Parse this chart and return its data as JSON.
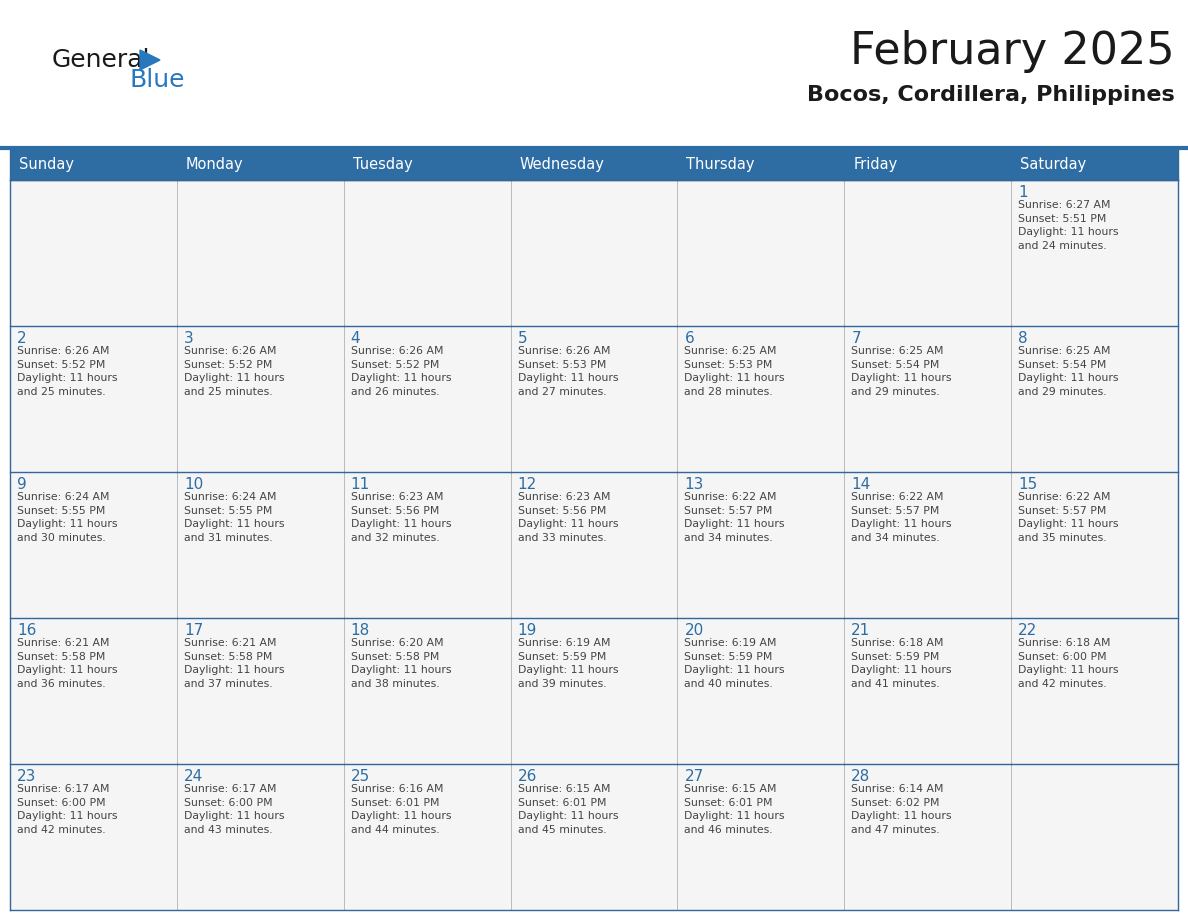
{
  "title": "February 2025",
  "subtitle": "Bocos, Cordillera, Philippines",
  "header_bg_color": "#2E6DA4",
  "header_text_color": "#FFFFFF",
  "cell_bg_color": "#F5F5F5",
  "day_number_color": "#2E6DA4",
  "text_color": "#444444",
  "border_color": "#336699",
  "sep_line_color": "#2E6DA4",
  "days_of_week": [
    "Sunday",
    "Monday",
    "Tuesday",
    "Wednesday",
    "Thursday",
    "Friday",
    "Saturday"
  ],
  "weeks": [
    [
      {
        "day": null,
        "info": null
      },
      {
        "day": null,
        "info": null
      },
      {
        "day": null,
        "info": null
      },
      {
        "day": null,
        "info": null
      },
      {
        "day": null,
        "info": null
      },
      {
        "day": null,
        "info": null
      },
      {
        "day": 1,
        "info": "Sunrise: 6:27 AM\nSunset: 5:51 PM\nDaylight: 11 hours\nand 24 minutes."
      }
    ],
    [
      {
        "day": 2,
        "info": "Sunrise: 6:26 AM\nSunset: 5:52 PM\nDaylight: 11 hours\nand 25 minutes."
      },
      {
        "day": 3,
        "info": "Sunrise: 6:26 AM\nSunset: 5:52 PM\nDaylight: 11 hours\nand 25 minutes."
      },
      {
        "day": 4,
        "info": "Sunrise: 6:26 AM\nSunset: 5:52 PM\nDaylight: 11 hours\nand 26 minutes."
      },
      {
        "day": 5,
        "info": "Sunrise: 6:26 AM\nSunset: 5:53 PM\nDaylight: 11 hours\nand 27 minutes."
      },
      {
        "day": 6,
        "info": "Sunrise: 6:25 AM\nSunset: 5:53 PM\nDaylight: 11 hours\nand 28 minutes."
      },
      {
        "day": 7,
        "info": "Sunrise: 6:25 AM\nSunset: 5:54 PM\nDaylight: 11 hours\nand 29 minutes."
      },
      {
        "day": 8,
        "info": "Sunrise: 6:25 AM\nSunset: 5:54 PM\nDaylight: 11 hours\nand 29 minutes."
      }
    ],
    [
      {
        "day": 9,
        "info": "Sunrise: 6:24 AM\nSunset: 5:55 PM\nDaylight: 11 hours\nand 30 minutes."
      },
      {
        "day": 10,
        "info": "Sunrise: 6:24 AM\nSunset: 5:55 PM\nDaylight: 11 hours\nand 31 minutes."
      },
      {
        "day": 11,
        "info": "Sunrise: 6:23 AM\nSunset: 5:56 PM\nDaylight: 11 hours\nand 32 minutes."
      },
      {
        "day": 12,
        "info": "Sunrise: 6:23 AM\nSunset: 5:56 PM\nDaylight: 11 hours\nand 33 minutes."
      },
      {
        "day": 13,
        "info": "Sunrise: 6:22 AM\nSunset: 5:57 PM\nDaylight: 11 hours\nand 34 minutes."
      },
      {
        "day": 14,
        "info": "Sunrise: 6:22 AM\nSunset: 5:57 PM\nDaylight: 11 hours\nand 34 minutes."
      },
      {
        "day": 15,
        "info": "Sunrise: 6:22 AM\nSunset: 5:57 PM\nDaylight: 11 hours\nand 35 minutes."
      }
    ],
    [
      {
        "day": 16,
        "info": "Sunrise: 6:21 AM\nSunset: 5:58 PM\nDaylight: 11 hours\nand 36 minutes."
      },
      {
        "day": 17,
        "info": "Sunrise: 6:21 AM\nSunset: 5:58 PM\nDaylight: 11 hours\nand 37 minutes."
      },
      {
        "day": 18,
        "info": "Sunrise: 6:20 AM\nSunset: 5:58 PM\nDaylight: 11 hours\nand 38 minutes."
      },
      {
        "day": 19,
        "info": "Sunrise: 6:19 AM\nSunset: 5:59 PM\nDaylight: 11 hours\nand 39 minutes."
      },
      {
        "day": 20,
        "info": "Sunrise: 6:19 AM\nSunset: 5:59 PM\nDaylight: 11 hours\nand 40 minutes."
      },
      {
        "day": 21,
        "info": "Sunrise: 6:18 AM\nSunset: 5:59 PM\nDaylight: 11 hours\nand 41 minutes."
      },
      {
        "day": 22,
        "info": "Sunrise: 6:18 AM\nSunset: 6:00 PM\nDaylight: 11 hours\nand 42 minutes."
      }
    ],
    [
      {
        "day": 23,
        "info": "Sunrise: 6:17 AM\nSunset: 6:00 PM\nDaylight: 11 hours\nand 42 minutes."
      },
      {
        "day": 24,
        "info": "Sunrise: 6:17 AM\nSunset: 6:00 PM\nDaylight: 11 hours\nand 43 minutes."
      },
      {
        "day": 25,
        "info": "Sunrise: 6:16 AM\nSunset: 6:01 PM\nDaylight: 11 hours\nand 44 minutes."
      },
      {
        "day": 26,
        "info": "Sunrise: 6:15 AM\nSunset: 6:01 PM\nDaylight: 11 hours\nand 45 minutes."
      },
      {
        "day": 27,
        "info": "Sunrise: 6:15 AM\nSunset: 6:01 PM\nDaylight: 11 hours\nand 46 minutes."
      },
      {
        "day": 28,
        "info": "Sunrise: 6:14 AM\nSunset: 6:02 PM\nDaylight: 11 hours\nand 47 minutes."
      },
      {
        "day": null,
        "info": null
      }
    ]
  ],
  "logo_general_color": "#1a1a1a",
  "logo_blue_color": "#2878BE",
  "logo_triangle_color": "#2878BE",
  "title_color": "#1a1a1a",
  "subtitle_color": "#1a1a1a"
}
